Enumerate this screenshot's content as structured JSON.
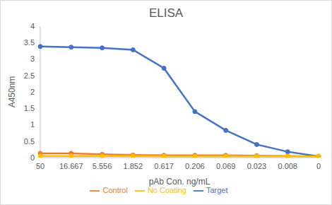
{
  "chart_data": {
    "type": "line",
    "title": "ELISA",
    "x_label": "pAb Con. ng/mL",
    "y_label": "A450nm",
    "categories": [
      "50",
      "16.667",
      "5.556",
      "1.852",
      "0.617",
      "0.206",
      "0.069",
      "0.023",
      "0.008",
      "0"
    ],
    "series": [
      {
        "name": "Target",
        "color": "#4472c4",
        "marker": "circle",
        "values": [
          3.38,
          3.36,
          3.34,
          3.28,
          2.72,
          1.4,
          0.83,
          0.4,
          0.18,
          0.04
        ]
      },
      {
        "name": "Control",
        "color": "#ed7d31",
        "marker": "circle",
        "values": [
          0.13,
          0.13,
          0.1,
          0.08,
          0.07,
          0.07,
          0.07,
          0.06,
          0.05,
          0.04
        ]
      },
      {
        "name": "No Coating",
        "color": "#ffc000",
        "marker": "circle",
        "values": [
          0.05,
          0.05,
          0.05,
          0.05,
          0.04,
          0.04,
          0.04,
          0.04,
          0.04,
          0.04
        ]
      }
    ],
    "ylim": [
      0,
      4
    ],
    "yticks": [
      0,
      0.5,
      1,
      1.5,
      2,
      2.5,
      3,
      3.5,
      4
    ],
    "grid": false,
    "legend": "bottom"
  }
}
